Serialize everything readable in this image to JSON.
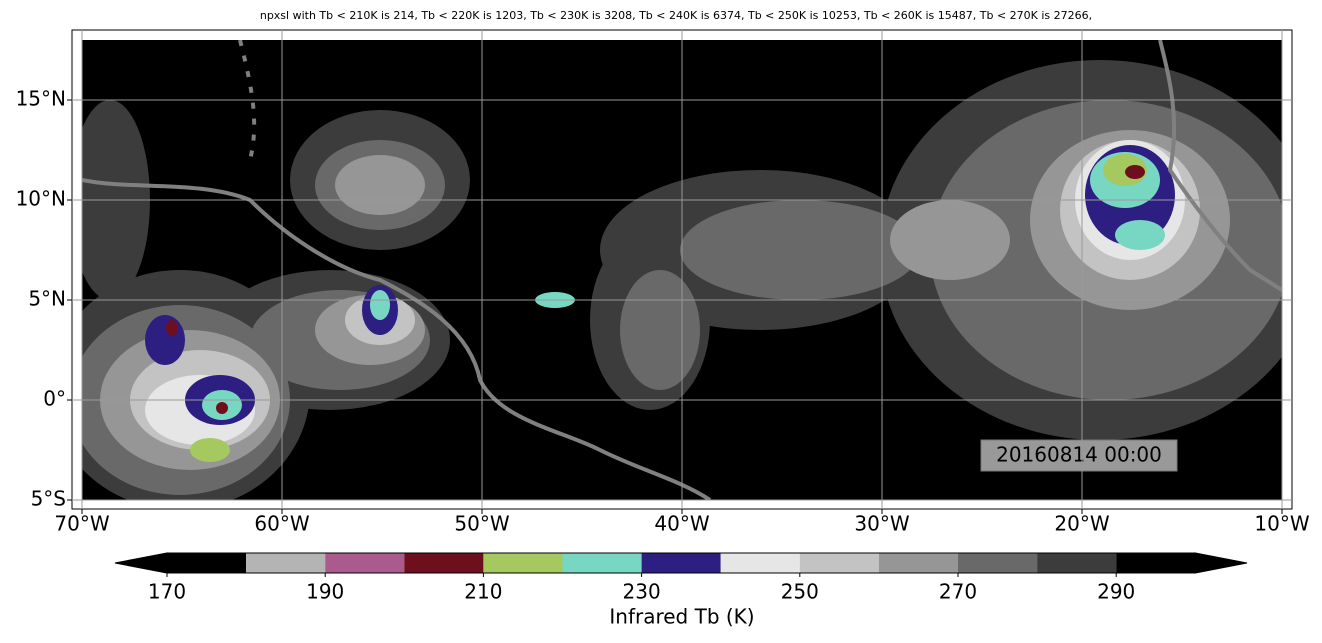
{
  "map": {
    "title": "npxsl with Tb < 210K is 214,  Tb < 220K is 1203,  Tb < 230K is 3208,  Tb < 240K is 6374,  Tb < 250K is 10253,  Tb < 260K is 15487,  Tb < 270K is 27266,",
    "timestamp": "20160814 00:00",
    "xlim": [
      -70.5,
      -9.5
    ],
    "ylim": [
      -5.45,
      18.5
    ],
    "xticks": [
      {
        "value": -70,
        "label": "70°W"
      },
      {
        "value": -60,
        "label": "60°W"
      },
      {
        "value": -50,
        "label": "50°W"
      },
      {
        "value": -40,
        "label": "40°W"
      },
      {
        "value": -30,
        "label": "30°W"
      },
      {
        "value": -20,
        "label": "20°W"
      },
      {
        "value": -10,
        "label": "10°W"
      }
    ],
    "yticks": [
      {
        "value": -5,
        "label": "5°S"
      },
      {
        "value": 0,
        "label": "0°"
      },
      {
        "value": 5,
        "label": "5°N"
      },
      {
        "value": 10,
        "label": "10°N"
      },
      {
        "value": 15,
        "label": "15°N"
      }
    ],
    "grid": true,
    "colorbar": {
      "label": "Infrared Tb (K)",
      "bounds": [
        170,
        180,
        190,
        200,
        210,
        220,
        230,
        240,
        250,
        260,
        270,
        280,
        290,
        300
      ],
      "colors": [
        "#000000",
        "#b4b4b4",
        "#aa5a8c",
        "#6e0f1e",
        "#a5c85f",
        "#78d7c3",
        "#2d1e82",
        "#e6e6e6",
        "#c3c3c3",
        "#969696",
        "#696969",
        "#3c3c3c",
        "#000000"
      ],
      "ticks": [
        170,
        190,
        210,
        230,
        250,
        270,
        290
      ]
    }
  }
}
